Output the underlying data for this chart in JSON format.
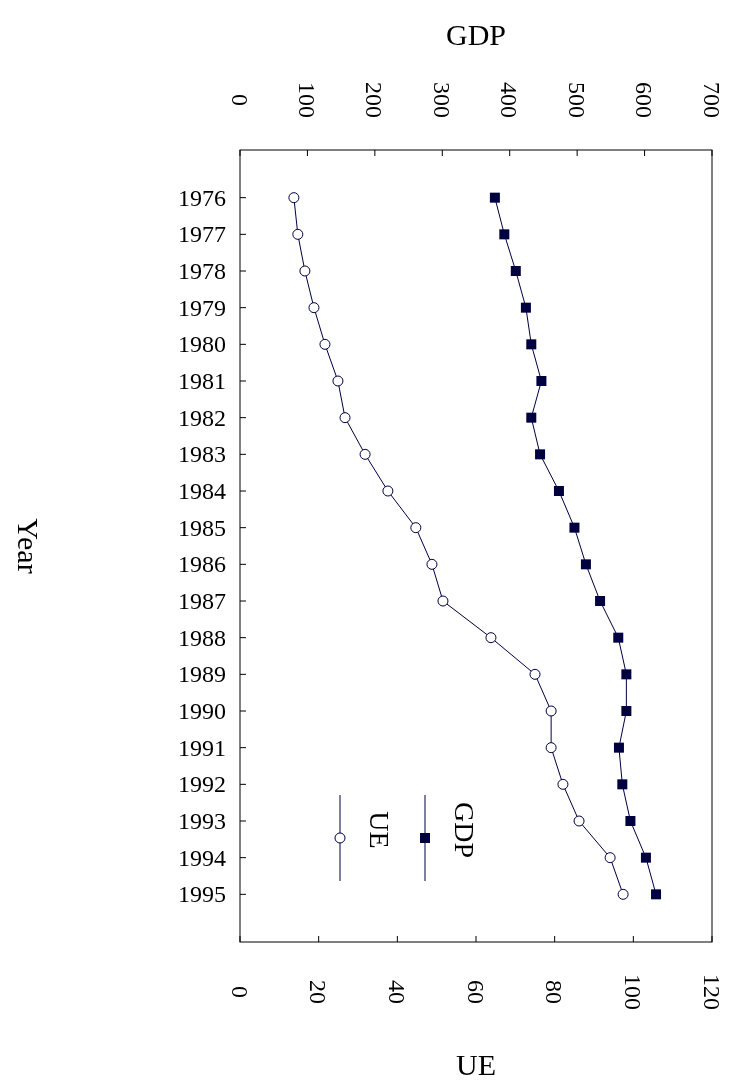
{
  "chart_data": {
    "type": "line",
    "xlabel": "UE",
    "x2label": "GDP",
    "ylabel": "Year",
    "ylim": [
      1996.3,
      1974.7
    ],
    "yticks": [
      1976,
      1977,
      1978,
      1979,
      1980,
      1981,
      1982,
      1983,
      1984,
      1985,
      1986,
      1987,
      1988,
      1989,
      1990,
      1991,
      1992,
      1993,
      1994,
      1995
    ],
    "x2lim": [
      0,
      700
    ],
    "x2ticks": [
      0,
      100,
      200,
      300,
      400,
      500,
      600,
      700
    ],
    "xlim": [
      0,
      120
    ],
    "xticks": [
      0,
      20,
      40,
      60,
      80,
      100,
      120
    ],
    "legend": "bottom left",
    "line_style": "solid",
    "series": [
      {
        "name": "GDP",
        "color": "#000040",
        "marker": "square",
        "axis": "x2",
        "x": [
          378,
          392,
          409,
          424,
          432,
          447,
          432,
          445,
          473,
          496,
          513,
          534,
          561,
          573,
          573,
          562,
          567,
          579,
          602,
          617
        ],
        "values": [
          1976,
          1977,
          1978,
          1979,
          1980,
          1981,
          1982,
          1983,
          1984,
          1985,
          1986,
          1987,
          1988,
          1989,
          1990,
          1991,
          1992,
          1993,
          1994,
          1995
        ]
      },
      {
        "name": "UE",
        "color": "#000040",
        "marker": "circle",
        "x": [
          13.7,
          14.7,
          16.5,
          18.8,
          21.6,
          24.9,
          26.7,
          31.8,
          37.6,
          44.7,
          48.8,
          51.6,
          63.8,
          75,
          79.1,
          79.1,
          82.1,
          86.2,
          94.1,
          97.4
        ],
        "values": [
          1976,
          1977,
          1978,
          1979,
          1980,
          1981,
          1982,
          1983,
          1984,
          1985,
          1986,
          1987,
          1988,
          1989,
          1990,
          1991,
          1992,
          1993,
          1994,
          1995
        ]
      }
    ]
  }
}
